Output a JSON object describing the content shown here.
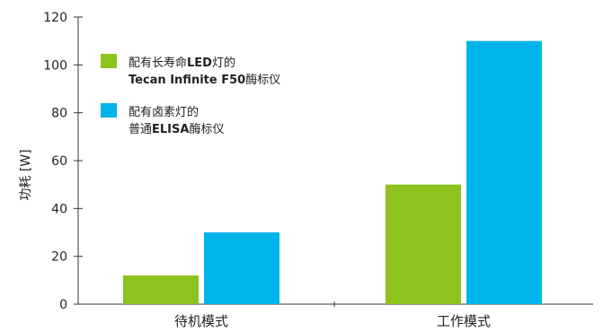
{
  "chart_data": {
    "type": "bar",
    "title": "",
    "xlabel": "",
    "ylabel": "功耗 [W]",
    "ylim": [
      0,
      120
    ],
    "yticks": [
      0,
      20,
      40,
      60,
      80,
      100,
      120
    ],
    "categories": [
      "待机模式",
      "工作模式"
    ],
    "series": [
      {
        "values": [
          12,
          50
        ],
        "color": "#8DC21F",
        "legend": {
          "line1": [
            {
              "text": "配有长寿命",
              "bold": false
            },
            {
              "text": "LED",
              "bold": true
            },
            {
              "text": "灯的",
              "bold": false
            }
          ],
          "line2": [
            {
              "text": "Tecan Infinite F50",
              "bold": true
            },
            {
              "text": "酶标仪",
              "bold": false
            }
          ]
        }
      },
      {
        "values": [
          30,
          110
        ],
        "color": "#00B4EB",
        "legend": {
          "line1": [
            {
              "text": "配有卤素灯的",
              "bold": false
            }
          ],
          "line2": [
            {
              "text": "普通",
              "bold": false
            },
            {
              "text": "ELISA",
              "bold": true
            },
            {
              "text": "酶标仪",
              "bold": false
            }
          ]
        }
      }
    ],
    "grid": false,
    "legend_position": "top-left"
  }
}
